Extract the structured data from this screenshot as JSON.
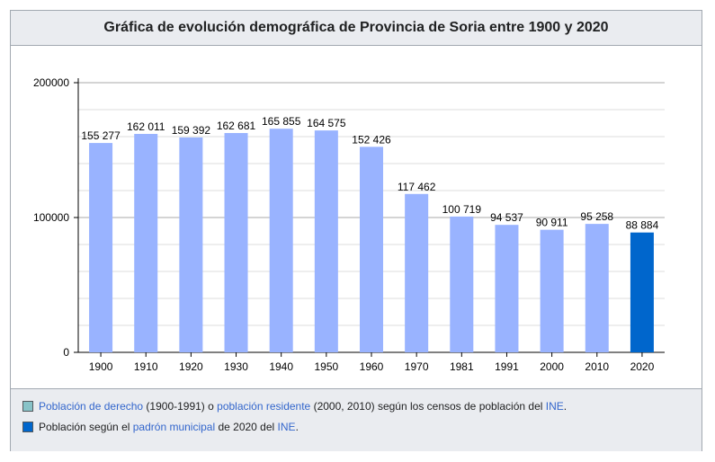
{
  "chart_title": "Gráfica de evolución demográfica de Provincia de Soria entre 1900 y 2020",
  "chart_data": {
    "type": "bar",
    "title": "Gráfica de evolución demográfica de Provincia de Soria entre 1900 y 2020",
    "xlabel": "",
    "ylabel": "",
    "ylim": [
      0,
      200000
    ],
    "y_ticks": [
      "200000",
      "100000",
      "0"
    ],
    "y_tick_values": [
      200000,
      100000,
      0
    ],
    "categories": [
      "1900",
      "1910",
      "1920",
      "1930",
      "1940",
      "1950",
      "1960",
      "1970",
      "1981",
      "1991",
      "2000",
      "2010",
      "2020"
    ],
    "values": [
      155277,
      162011,
      159392,
      162681,
      165855,
      164575,
      152426,
      117462,
      100719,
      94537,
      90911,
      95258,
      88884
    ],
    "value_labels": [
      "155 277",
      "162 011",
      "159 392",
      "162 681",
      "165 855",
      "164 575",
      "152 426",
      "117 462",
      "100 719",
      "94 537",
      "90 911",
      "95 258",
      "88 884"
    ],
    "bar_colors": [
      "#99b3ff",
      "#99b3ff",
      "#99b3ff",
      "#99b3ff",
      "#99b3ff",
      "#99b3ff",
      "#99b3ff",
      "#99b3ff",
      "#99b3ff",
      "#99b3ff",
      "#99b3ff",
      "#99b3ff",
      "#0066cc"
    ],
    "grid": true
  },
  "legend": {
    "row1": {
      "swatch_color": "#88c3c8",
      "link1": "Población de derecho",
      "text1": " (1900-1991) o ",
      "link2": "población residente",
      "text2": " (2000, 2010) según los censos de población del ",
      "link3": "INE",
      "text3": "."
    },
    "row2": {
      "swatch_color": "#0066cc",
      "text1": "Población según el ",
      "link1": "padrón municipal",
      "text2": " de 2020 del ",
      "link2": "INE",
      "text3": "."
    }
  }
}
